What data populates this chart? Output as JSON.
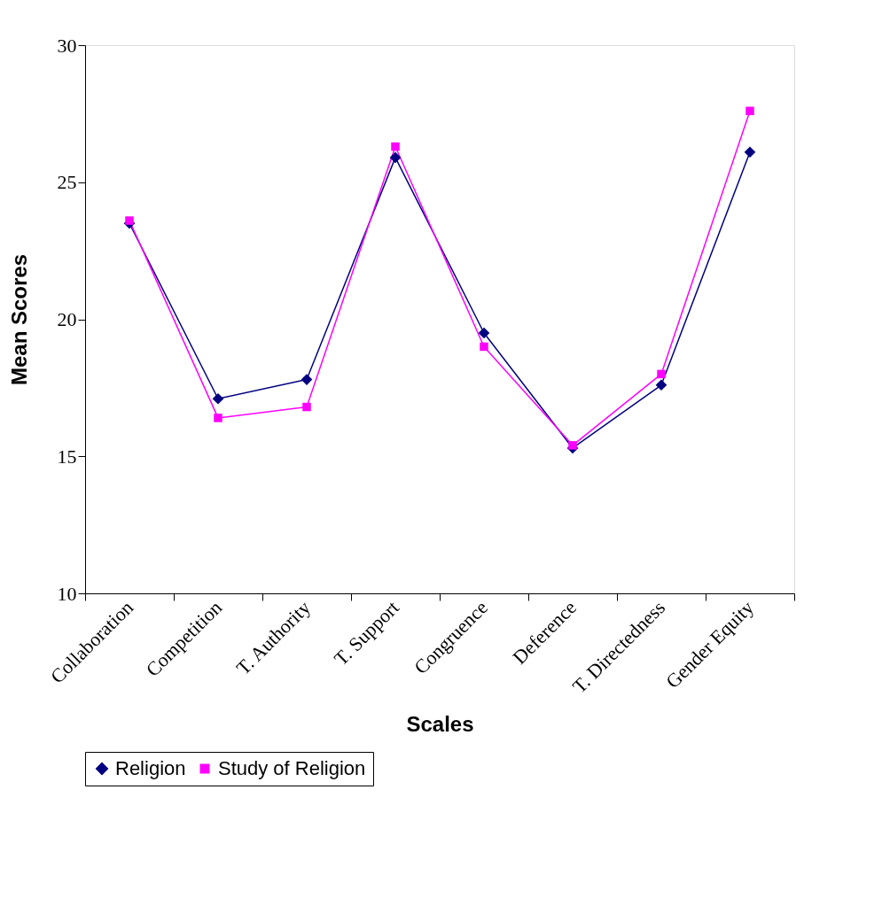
{
  "chart_data": {
    "type": "line",
    "xlabel": "Scales",
    "ylabel": "Mean Scores",
    "categories": [
      "Collaboration",
      "Competition",
      "T. Authority",
      "T. Support",
      "Congruence",
      "Deference",
      "T. Directedness",
      "Gender Equity"
    ],
    "series": [
      {
        "name": "Religion",
        "color": "#000080",
        "marker": "diamond",
        "values": [
          23.5,
          17.1,
          17.8,
          25.9,
          19.5,
          15.3,
          17.6,
          26.1
        ]
      },
      {
        "name": "Study of Religion",
        "color": "#ff00ff",
        "marker": "square",
        "values": [
          23.6,
          16.4,
          16.8,
          26.3,
          19.0,
          15.4,
          18.0,
          27.6
        ]
      }
    ],
    "ylim": [
      10,
      30
    ],
    "yticks": [
      10,
      15,
      20,
      25,
      30
    ],
    "grid": false,
    "legend": "bottom"
  }
}
